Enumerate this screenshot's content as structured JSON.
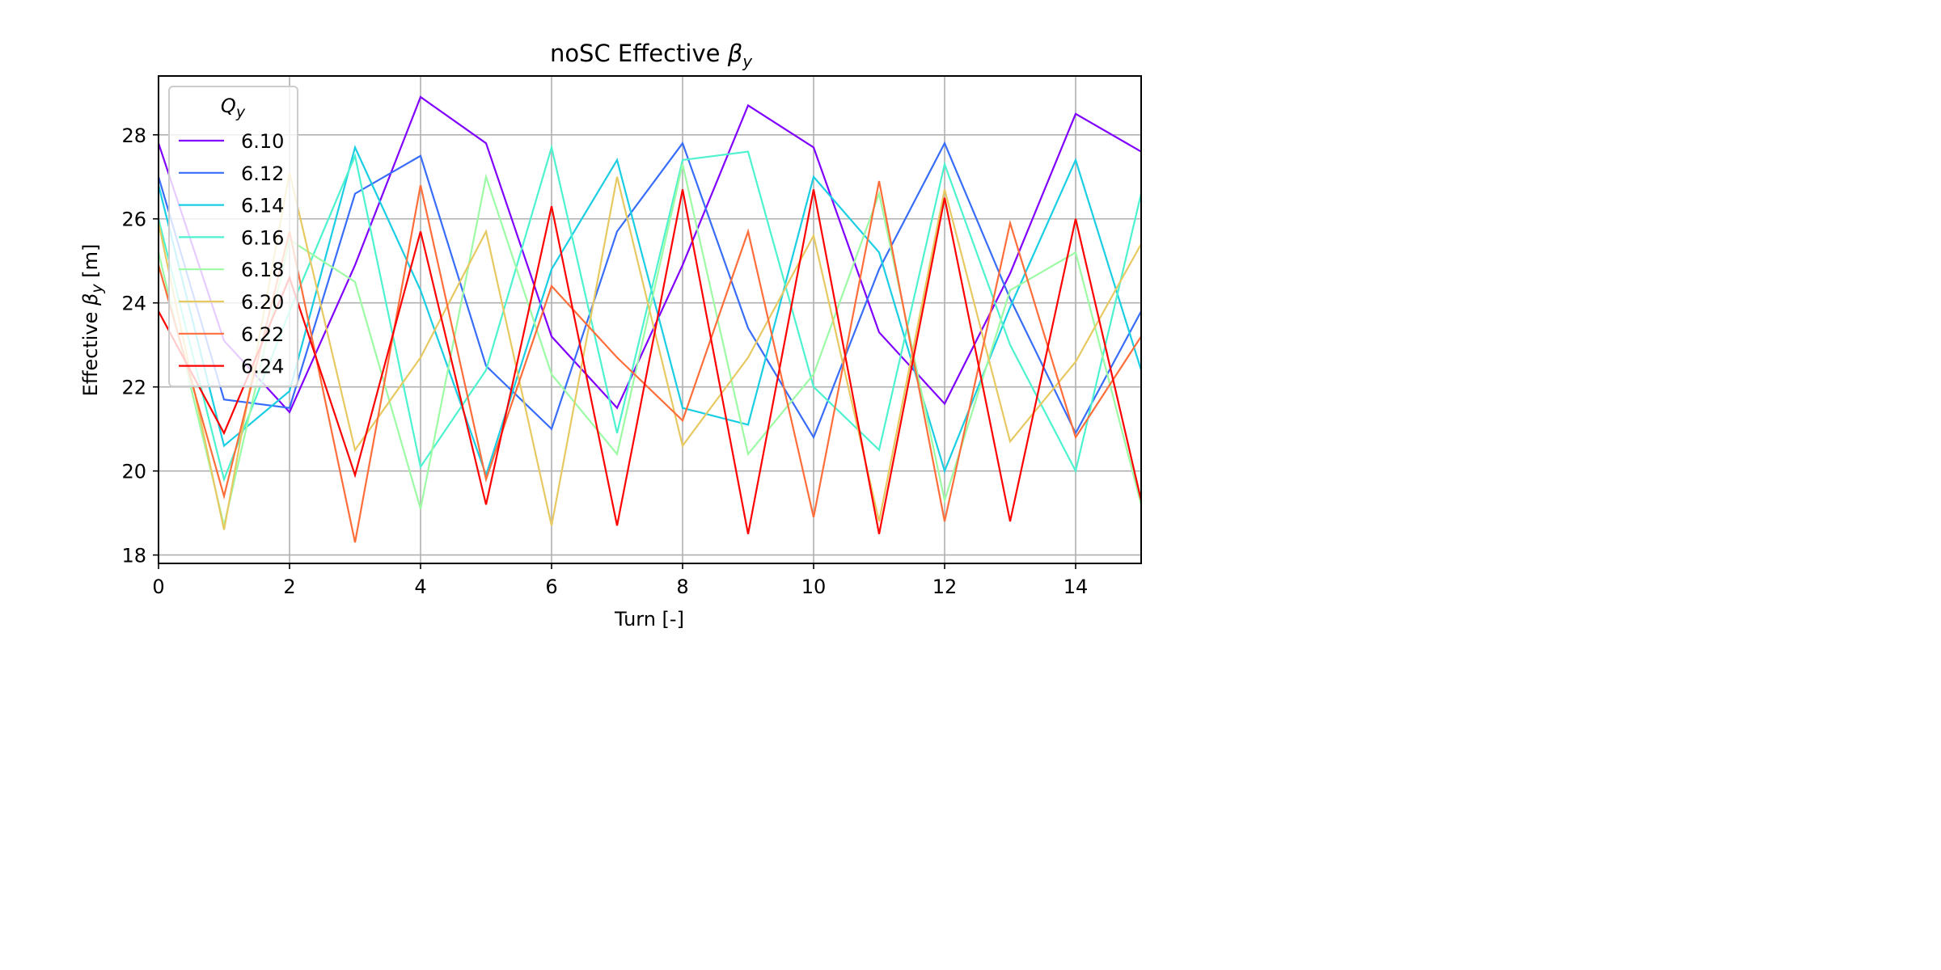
{
  "chart_data": {
    "type": "line",
    "title": "noSC Effective βy",
    "xlabel": "Turn [-]",
    "ylabel": "Effective βy [m]",
    "xlim": [
      0,
      15
    ],
    "ylim": [
      17.8,
      29.4
    ],
    "xticks": [
      0,
      2,
      4,
      6,
      8,
      10,
      12,
      14
    ],
    "yticks": [
      18,
      20,
      22,
      24,
      26,
      28
    ],
    "grid": true,
    "legend": {
      "title": "Qy",
      "placement": "upper-left"
    },
    "x": [
      0,
      1,
      2,
      3,
      4,
      5,
      6,
      7,
      8,
      9,
      10,
      11,
      12,
      13,
      14,
      15
    ],
    "series": [
      {
        "name": "6.10",
        "color": "#8000ff",
        "values": [
          27.8,
          23.1,
          21.4,
          24.9,
          28.9,
          27.8,
          23.2,
          21.5,
          24.9,
          28.7,
          27.7,
          23.3,
          21.6,
          24.7,
          28.5,
          27.6
        ]
      },
      {
        "name": "6.12",
        "color": "#386df9",
        "values": [
          27.0,
          21.7,
          21.5,
          26.6,
          27.5,
          22.5,
          21.0,
          25.7,
          27.8,
          23.4,
          20.8,
          24.8,
          27.8,
          24.1,
          20.9,
          23.8
        ]
      },
      {
        "name": "6.14",
        "color": "#1acee3",
        "values": [
          26.8,
          20.6,
          21.9,
          27.7,
          24.3,
          19.9,
          24.8,
          27.4,
          21.5,
          21.1,
          27.0,
          25.2,
          20.0,
          23.9,
          27.4,
          22.4
        ]
      },
      {
        "name": "6.16",
        "color": "#4df3ce",
        "values": [
          26.0,
          19.8,
          23.8,
          27.5,
          20.1,
          22.4,
          27.7,
          20.9,
          27.4,
          27.6,
          22.0,
          20.5,
          27.3,
          23.0,
          20.0,
          26.6
        ]
      },
      {
        "name": "6.18",
        "color": "#9cfba4",
        "values": [
          25.2,
          18.7,
          25.5,
          24.5,
          19.1,
          27.0,
          22.3,
          20.4,
          27.3,
          20.4,
          22.3,
          26.6,
          19.3,
          24.3,
          25.2,
          19.2
        ]
      },
      {
        "name": "6.20",
        "color": "#e7c962",
        "values": [
          25.9,
          18.6,
          27.1,
          20.5,
          22.7,
          25.7,
          18.7,
          27.0,
          20.6,
          22.7,
          25.6,
          18.8,
          26.7,
          20.7,
          22.6,
          25.4
        ]
      },
      {
        "name": "6.22",
        "color": "#ff6e3a",
        "values": [
          24.9,
          19.4,
          25.7,
          18.3,
          26.8,
          19.8,
          24.4,
          22.7,
          21.2,
          25.7,
          18.9,
          26.9,
          18.8,
          25.9,
          20.8,
          23.2
        ]
      },
      {
        "name": "6.24",
        "color": "#ff0000",
        "values": [
          23.8,
          20.9,
          24.6,
          19.9,
          25.7,
          19.2,
          26.3,
          18.7,
          26.7,
          18.5,
          26.7,
          18.5,
          26.5,
          18.8,
          26.0,
          19.3
        ]
      }
    ]
  }
}
